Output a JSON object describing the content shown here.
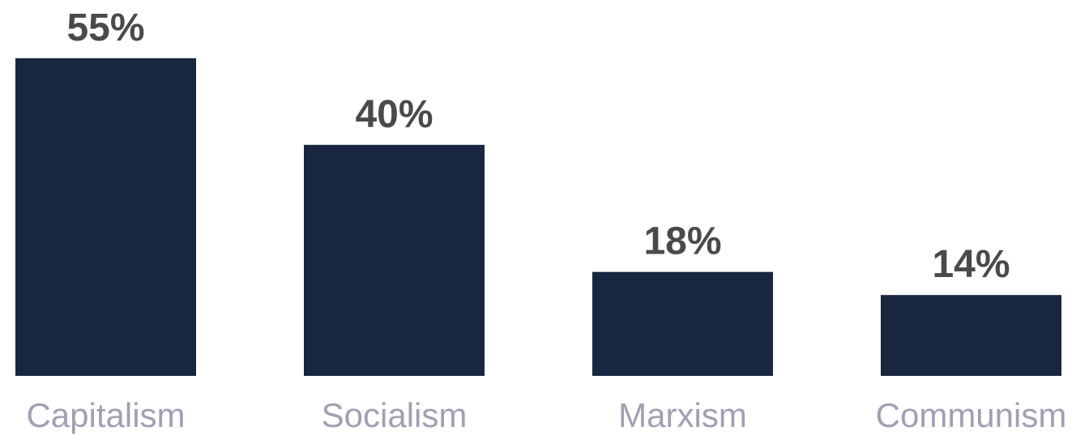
{
  "chart_data": {
    "type": "bar",
    "categories": [
      "Capitalism",
      "Socialism",
      "Marxism",
      "Communism"
    ],
    "values": [
      55,
      40,
      18,
      14
    ],
    "value_labels": [
      "55%",
      "40%",
      "18%",
      "14%"
    ],
    "unit": "%",
    "bar_color": "#18273f",
    "value_label_color": "#4a4a4a",
    "category_label_color": "#a29fb4",
    "grid": false,
    "legend": "none"
  }
}
